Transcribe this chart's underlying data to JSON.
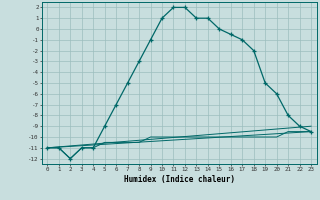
{
  "xlabel": "Humidex (Indice chaleur)",
  "background_color": "#c8dede",
  "grid_color": "#9cbebe",
  "line_color": "#006868",
  "xlim": [
    -0.5,
    23.5
  ],
  "ylim": [
    -12.5,
    2.5
  ],
  "xticks": [
    0,
    1,
    2,
    3,
    4,
    5,
    6,
    7,
    8,
    9,
    10,
    11,
    12,
    13,
    14,
    15,
    16,
    17,
    18,
    19,
    20,
    21,
    22,
    23
  ],
  "yticks": [
    2,
    1,
    0,
    -1,
    -2,
    -3,
    -4,
    -5,
    -6,
    -7,
    -8,
    -9,
    -10,
    -11,
    -12
  ],
  "line1_x": [
    0,
    1,
    2,
    3,
    4,
    5,
    6,
    7,
    8,
    9,
    10,
    11,
    12,
    13,
    14,
    15,
    16,
    17,
    18,
    19,
    20,
    21,
    22,
    23
  ],
  "line1_y": [
    -11,
    -11,
    -12,
    -11,
    -11,
    -9,
    -7,
    -5,
    -3,
    -1,
    1,
    2,
    2,
    1,
    1,
    0,
    -0.5,
    -1,
    -2,
    -5,
    -6,
    -8,
    -9,
    -9.5
  ],
  "line2_x": [
    0,
    1,
    2,
    3,
    4,
    5,
    6,
    7,
    8,
    9,
    10,
    11,
    12,
    13,
    14,
    15,
    16,
    17,
    18,
    19,
    20,
    21,
    22,
    23
  ],
  "line2_y": [
    -11,
    -11,
    -12,
    -11,
    -11,
    -10.5,
    -10.5,
    -10.5,
    -10.5,
    -10,
    -10,
    -10,
    -10,
    -10,
    -10,
    -10,
    -10,
    -10,
    -10,
    -10,
    -10,
    -9.5,
    -9.5,
    -9.5
  ],
  "line3_x": [
    0,
    23
  ],
  "line3_y": [
    -11,
    -9.5
  ],
  "line4_x": [
    0,
    23
  ],
  "line4_y": [
    -11,
    -9.0
  ]
}
